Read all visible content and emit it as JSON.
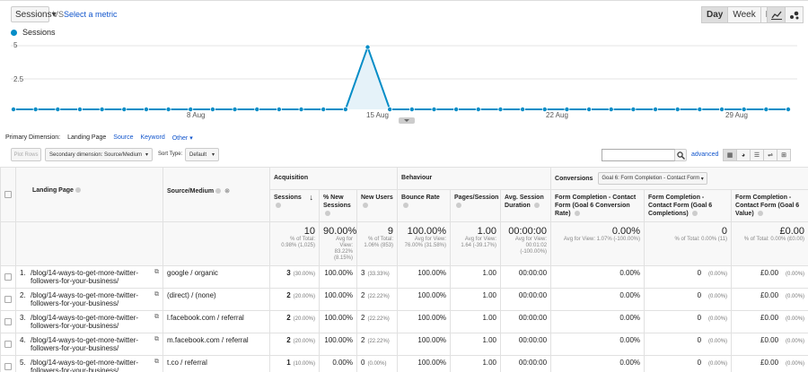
{
  "toolbar": {
    "metric": "Sessions",
    "vs": "VS",
    "select_metric": "Select a metric",
    "periods": [
      "Day",
      "Week",
      "Month"
    ],
    "active_period": "Day"
  },
  "chart_data": {
    "type": "line",
    "series": [
      {
        "name": "Sessions",
        "color": "#058dc7",
        "values": [
          0,
          0,
          0,
          0,
          0,
          0,
          0,
          0,
          0,
          0,
          0,
          0,
          0,
          0,
          0,
          0,
          5,
          0,
          0,
          0,
          0,
          0,
          0,
          0,
          0,
          0,
          0,
          0,
          0,
          0,
          0,
          0,
          0,
          0,
          0,
          0
        ]
      }
    ],
    "ylim": [
      0,
      5.5
    ],
    "y_ticks": [
      "5",
      "2.5"
    ],
    "x_tick_labels": [
      "8 Aug",
      "15 Aug",
      "22 Aug",
      "29 Aug"
    ],
    "grid": true
  },
  "primary_dimension": {
    "label": "Primary Dimension:",
    "active": "Landing Page",
    "options": [
      "Source",
      "Keyword",
      "Other"
    ]
  },
  "table_toolbar": {
    "plot_rows": "Plot Rows",
    "secondary_dimension": "Secondary dimension: Source/Medium",
    "sort_type_label": "Sort Type:",
    "sort_type_value": "Default",
    "search_placeholder": "",
    "advanced": "advanced"
  },
  "table": {
    "groups": {
      "acquisition": "Acquisition",
      "behaviour": "Behaviour",
      "conversions": "Conversions",
      "goal": "Goal 6: Form Completion - Contact Form"
    },
    "headers": {
      "landing_page": "Landing Page",
      "source_medium": "Source/Medium",
      "sessions": "Sessions",
      "new_sessions": "% New Sessions",
      "new_users": "New Users",
      "bounce_rate": "Bounce Rate",
      "pages_session": "Pages/Session",
      "avg_duration": "Avg. Session Duration",
      "conv_rate": "Form Completion - Contact Form (Goal 6 Conversion Rate)",
      "completions": "Form Completion - Contact Form (Goal 6 Completions)",
      "value": "Form Completion - Contact Form (Goal 6 Value)"
    },
    "totals": {
      "sessions": "10",
      "sessions_sub": "% of Total: 0.98% (1,025)",
      "new_sessions": "90.00%",
      "new_sessions_sub": "Avg for View: 83.22% (8.15%)",
      "new_users": "9",
      "new_users_sub": "% of Total: 1.06% (853)",
      "bounce_rate": "100.00%",
      "bounce_rate_sub": "Avg for View: 76.00% (31.58%)",
      "pages_session": "1.00",
      "pages_session_sub": "Avg for View: 1.64 (-39.17%)",
      "avg_duration": "00:00:00",
      "avg_duration_sub": "Avg for View: 00:01:02 (-100.00%)",
      "conv_rate": "0.00%",
      "conv_rate_sub": "Avg for View: 1.07% (-100.00%)",
      "completions": "0",
      "completions_sub": "% of Total: 0.00% (11)",
      "value": "£0.00",
      "value_sub": "% of Total: 0.00% (£0.00)"
    },
    "rows": [
      {
        "num": "1.",
        "page": "/blog/14-ways-to-get-more-twitter-followers-for-your-business/",
        "source": "google / organic",
        "sessions": "3",
        "sessions_pct": "(30.00%)",
        "new_sessions": "100.00%",
        "new_users": "3",
        "new_users_pct": "(33.33%)",
        "bounce": "100.00%",
        "pages": "1.00",
        "duration": "00:00:00",
        "conv": "0.00%",
        "comp": "0",
        "comp_pct": "(0.00%)",
        "value": "£0.00",
        "value_pct": "(0.00%)"
      },
      {
        "num": "2.",
        "page": "/blog/14-ways-to-get-more-twitter-followers-for-your-business/",
        "source": "(direct) / (none)",
        "sessions": "2",
        "sessions_pct": "(20.00%)",
        "new_sessions": "100.00%",
        "new_users": "2",
        "new_users_pct": "(22.22%)",
        "bounce": "100.00%",
        "pages": "1.00",
        "duration": "00:00:00",
        "conv": "0.00%",
        "comp": "0",
        "comp_pct": "(0.00%)",
        "value": "£0.00",
        "value_pct": "(0.00%)"
      },
      {
        "num": "3.",
        "page": "/blog/14-ways-to-get-more-twitter-followers-for-your-business/",
        "source": "l.facebook.com / referral",
        "sessions": "2",
        "sessions_pct": "(20.00%)",
        "new_sessions": "100.00%",
        "new_users": "2",
        "new_users_pct": "(22.22%)",
        "bounce": "100.00%",
        "pages": "1.00",
        "duration": "00:00:00",
        "conv": "0.00%",
        "comp": "0",
        "comp_pct": "(0.00%)",
        "value": "£0.00",
        "value_pct": "(0.00%)"
      },
      {
        "num": "4.",
        "page": "/blog/14-ways-to-get-more-twitter-followers-for-your-business/",
        "source": "m.facebook.com / referral",
        "sessions": "2",
        "sessions_pct": "(20.00%)",
        "new_sessions": "100.00%",
        "new_users": "2",
        "new_users_pct": "(22.22%)",
        "bounce": "100.00%",
        "pages": "1.00",
        "duration": "00:00:00",
        "conv": "0.00%",
        "comp": "0",
        "comp_pct": "(0.00%)",
        "value": "£0.00",
        "value_pct": "(0.00%)"
      },
      {
        "num": "5.",
        "page": "/blog/14-ways-to-get-more-twitter-followers-for-your-business/",
        "source": "t.co / referral",
        "sessions": "1",
        "sessions_pct": "(10.00%)",
        "new_sessions": "0.00%",
        "new_users": "0",
        "new_users_pct": "(0.00%)",
        "bounce": "100.00%",
        "pages": "1.00",
        "duration": "00:00:00",
        "conv": "0.00%",
        "comp": "0",
        "comp_pct": "(0.00%)",
        "value": "£0.00",
        "value_pct": "(0.00%)"
      }
    ]
  }
}
